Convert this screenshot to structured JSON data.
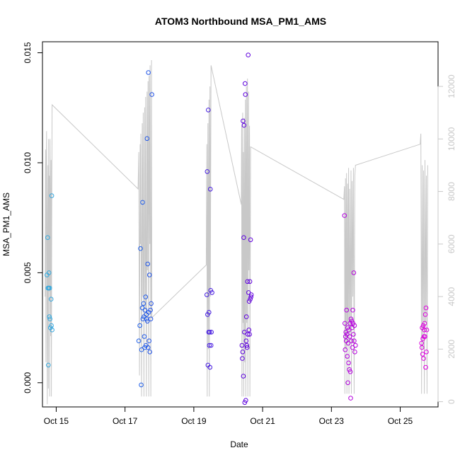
{
  "chart_data": {
    "type": "scatter",
    "title": "ATOM3 Northbound MSA_PM1_AMS",
    "xlabel": "Date",
    "ylabel": "MSA_PM1_AMS",
    "xlim": [
      14.6,
      26.1
    ],
    "ylim": [
      -0.0011,
      0.0155
    ],
    "y2lim": [
      -200,
      13700
    ],
    "x_ticks": [
      {
        "value": 15,
        "label": "Oct 15"
      },
      {
        "value": 17,
        "label": "Oct 17"
      },
      {
        "value": 19,
        "label": "Oct 19"
      },
      {
        "value": 21,
        "label": "Oct 21"
      },
      {
        "value": 23,
        "label": "Oct 23"
      },
      {
        "value": 25,
        "label": "Oct 25"
      }
    ],
    "y_ticks": [
      {
        "value": 0.0,
        "label": "0.000"
      },
      {
        "value": 0.005,
        "label": "0.005"
      },
      {
        "value": 0.01,
        "label": "0.010"
      },
      {
        "value": 0.015,
        "label": "0.015"
      }
    ],
    "y2_ticks": [
      {
        "value": 0,
        "label": "0"
      },
      {
        "value": 2000,
        "label": "2000"
      },
      {
        "value": 4000,
        "label": "4000"
      },
      {
        "value": 6000,
        "label": "6000"
      },
      {
        "value": 8000,
        "label": "8000"
      },
      {
        "value": 10000,
        "label": "10000"
      },
      {
        "value": 12000,
        "label": "12000"
      }
    ],
    "points": [
      {
        "x": 14.73,
        "y": 0.0049
      },
      {
        "x": 14.75,
        "y": 0.0066
      },
      {
        "x": 14.76,
        "y": 0.0043
      },
      {
        "x": 14.77,
        "y": 0.0008
      },
      {
        "x": 14.78,
        "y": 0.0043
      },
      {
        "x": 14.79,
        "y": 0.005
      },
      {
        "x": 14.8,
        "y": 0.003
      },
      {
        "x": 14.81,
        "y": 0.0043
      },
      {
        "x": 14.82,
        "y": 0.0029
      },
      {
        "x": 14.83,
        "y": 0.0025
      },
      {
        "x": 14.85,
        "y": 0.0038
      },
      {
        "x": 14.86,
        "y": 0.0026
      },
      {
        "x": 14.87,
        "y": 0.0085
      },
      {
        "x": 14.88,
        "y": 0.0024
      },
      {
        "x": 17.4,
        "y": 0.0019
      },
      {
        "x": 17.43,
        "y": 0.0026
      },
      {
        "x": 17.45,
        "y": 0.0061
      },
      {
        "x": 17.47,
        "y": -0.0001
      },
      {
        "x": 17.48,
        "y": 0.0015
      },
      {
        "x": 17.5,
        "y": 0.0034
      },
      {
        "x": 17.51,
        "y": 0.0082
      },
      {
        "x": 17.52,
        "y": 0.0029
      },
      {
        "x": 17.54,
        "y": 0.0036
      },
      {
        "x": 17.55,
        "y": 0.003
      },
      {
        "x": 17.56,
        "y": 0.0021
      },
      {
        "x": 17.57,
        "y": 0.0016
      },
      {
        "x": 17.58,
        "y": 0.0033
      },
      {
        "x": 17.6,
        "y": 0.0039
      },
      {
        "x": 17.61,
        "y": 0.0017
      },
      {
        "x": 17.62,
        "y": 0.0031
      },
      {
        "x": 17.63,
        "y": 0.0029
      },
      {
        "x": 17.64,
        "y": 0.0111
      },
      {
        "x": 17.65,
        "y": 0.0028
      },
      {
        "x": 17.66,
        "y": 0.0054
      },
      {
        "x": 17.67,
        "y": 0.0016
      },
      {
        "x": 17.68,
        "y": 0.0141
      },
      {
        "x": 17.69,
        "y": 0.0032
      },
      {
        "x": 17.7,
        "y": 0.0019
      },
      {
        "x": 17.71,
        "y": 0.0049
      },
      {
        "x": 17.72,
        "y": 0.0014
      },
      {
        "x": 17.74,
        "y": 0.0033
      },
      {
        "x": 17.75,
        "y": 0.0029
      },
      {
        "x": 17.76,
        "y": 0.0036
      },
      {
        "x": 17.78,
        "y": 0.0131
      },
      {
        "x": 19.38,
        "y": 0.004
      },
      {
        "x": 19.39,
        "y": 0.0096
      },
      {
        "x": 19.4,
        "y": 0.0031
      },
      {
        "x": 19.41,
        "y": 0.0008
      },
      {
        "x": 19.42,
        "y": 0.0124
      },
      {
        "x": 19.43,
        "y": 0.0023
      },
      {
        "x": 19.44,
        "y": 0.0032
      },
      {
        "x": 19.45,
        "y": 0.0017
      },
      {
        "x": 19.46,
        "y": 0.0023
      },
      {
        "x": 19.47,
        "y": 0.0007
      },
      {
        "x": 19.48,
        "y": 0.0088
      },
      {
        "x": 19.49,
        "y": 0.0042
      },
      {
        "x": 19.5,
        "y": 0.0017
      },
      {
        "x": 19.51,
        "y": 0.0023
      },
      {
        "x": 19.53,
        "y": 0.0041
      },
      {
        "x": 20.4,
        "y": 0.0017
      },
      {
        "x": 20.41,
        "y": 0.0011
      },
      {
        "x": 20.42,
        "y": 0.0014
      },
      {
        "x": 20.43,
        "y": 0.0119
      },
      {
        "x": 20.44,
        "y": 0.0003
      },
      {
        "x": 20.45,
        "y": 0.0066
      },
      {
        "x": 20.46,
        "y": 0.0117
      },
      {
        "x": 20.47,
        "y": 0.0023
      },
      {
        "x": 20.48,
        "y": -0.0009
      },
      {
        "x": 20.49,
        "y": 0.0136
      },
      {
        "x": 20.5,
        "y": 0.0131
      },
      {
        "x": 20.51,
        "y": -0.0008
      },
      {
        "x": 20.52,
        "y": 0.0019
      },
      {
        "x": 20.53,
        "y": 0.003
      },
      {
        "x": 20.54,
        "y": 0.0017
      },
      {
        "x": 20.55,
        "y": 0.0016
      },
      {
        "x": 20.56,
        "y": 0.0046
      },
      {
        "x": 20.57,
        "y": 0.0022
      },
      {
        "x": 20.58,
        "y": 0.0149
      },
      {
        "x": 20.59,
        "y": 0.0041
      },
      {
        "x": 20.6,
        "y": 0.0024
      },
      {
        "x": 20.61,
        "y": 0.0037
      },
      {
        "x": 20.62,
        "y": 0.0022
      },
      {
        "x": 20.63,
        "y": 0.0046
      },
      {
        "x": 20.64,
        "y": 0.0038
      },
      {
        "x": 20.65,
        "y": 0.0065
      },
      {
        "x": 20.66,
        "y": 0.0039
      },
      {
        "x": 20.67,
        "y": 0.004
      },
      {
        "x": 23.38,
        "y": 0.0076
      },
      {
        "x": 23.39,
        "y": 0.0027
      },
      {
        "x": 23.4,
        "y": 0.0015
      },
      {
        "x": 23.41,
        "y": 0.0021
      },
      {
        "x": 23.42,
        "y": 0.0023
      },
      {
        "x": 23.43,
        "y": 0.0019
      },
      {
        "x": 23.44,
        "y": 0.0033
      },
      {
        "x": 23.45,
        "y": 0.0022
      },
      {
        "x": 23.46,
        "y": 0.0012
      },
      {
        "x": 23.47,
        "y": 0.0025
      },
      {
        "x": 23.48,
        "y": 0.0
      },
      {
        "x": 23.49,
        "y": 0.0018
      },
      {
        "x": 23.5,
        "y": 0.0009
      },
      {
        "x": 23.51,
        "y": 0.0024
      },
      {
        "x": 23.52,
        "y": 0.0006
      },
      {
        "x": 23.53,
        "y": 0.0021
      },
      {
        "x": 23.54,
        "y": 0.0027
      },
      {
        "x": 23.55,
        "y": 0.0005
      },
      {
        "x": 23.56,
        "y": -0.0007
      },
      {
        "x": 23.57,
        "y": 0.0029
      },
      {
        "x": 23.58,
        "y": 0.0019
      },
      {
        "x": 23.59,
        "y": 0.0028
      },
      {
        "x": 23.6,
        "y": 0.0025
      },
      {
        "x": 23.61,
        "y": 0.0016
      },
      {
        "x": 23.62,
        "y": 0.0033
      },
      {
        "x": 23.63,
        "y": 0.0027
      },
      {
        "x": 23.64,
        "y": 0.0022
      },
      {
        "x": 23.65,
        "y": 0.005
      },
      {
        "x": 23.66,
        "y": 0.0019
      },
      {
        "x": 23.67,
        "y": 0.0026
      },
      {
        "x": 23.68,
        "y": 0.0014
      },
      {
        "x": 23.7,
        "y": 0.0017
      },
      {
        "x": 25.62,
        "y": 0.0018
      },
      {
        "x": 25.63,
        "y": 0.0016
      },
      {
        "x": 25.64,
        "y": 0.0025
      },
      {
        "x": 25.65,
        "y": 0.0013
      },
      {
        "x": 25.66,
        "y": 0.002
      },
      {
        "x": 25.67,
        "y": 0.0026
      },
      {
        "x": 25.68,
        "y": 0.0011
      },
      {
        "x": 25.69,
        "y": 0.0021
      },
      {
        "x": 25.7,
        "y": 0.0024
      },
      {
        "x": 25.71,
        "y": 0.0027
      },
      {
        "x": 25.72,
        "y": 0.0021
      },
      {
        "x": 25.73,
        "y": 0.0031
      },
      {
        "x": 25.74,
        "y": 0.0007
      },
      {
        "x": 25.75,
        "y": 0.0034
      },
      {
        "x": 25.76,
        "y": 0.0014
      },
      {
        "x": 25.77,
        "y": 0.0024
      }
    ],
    "series2_line": [
      {
        "x": 14.68,
        "y2": 4000
      },
      {
        "x": 14.69,
        "y2": 9600
      },
      {
        "x": 14.7,
        "y2": 1500
      },
      {
        "x": 14.71,
        "y2": 8400
      },
      {
        "x": 14.72,
        "y2": 10300
      },
      {
        "x": 14.73,
        "y2": 5800
      },
      {
        "x": 14.74,
        "y2": -100
      },
      {
        "x": 14.75,
        "y2": 7200
      },
      {
        "x": 14.76,
        "y2": 9000
      },
      {
        "x": 14.77,
        "y2": 500
      },
      {
        "x": 14.78,
        "y2": 10000
      },
      {
        "x": 14.79,
        "y2": 4200
      },
      {
        "x": 14.8,
        "y2": 8600
      },
      {
        "x": 14.81,
        "y2": 200
      },
      {
        "x": 14.82,
        "y2": 10000
      },
      {
        "x": 14.83,
        "y2": 7400
      },
      {
        "x": 14.84,
        "y2": 2500
      },
      {
        "x": 14.85,
        "y2": 9200
      },
      {
        "x": 14.86,
        "y2": 200
      },
      {
        "x": 14.87,
        "y2": 6500
      },
      {
        "x": 14.88,
        "y2": 11300
      },
      {
        "x": 17.38,
        "y2": 8100
      },
      {
        "x": 17.4,
        "y2": 9500
      },
      {
        "x": 17.42,
        "y2": 1000
      },
      {
        "x": 17.44,
        "y2": 9800
      },
      {
        "x": 17.45,
        "y2": 6000
      },
      {
        "x": 17.46,
        "y2": 10200
      },
      {
        "x": 17.48,
        "y2": 200
      },
      {
        "x": 17.5,
        "y2": 10600
      },
      {
        "x": 17.52,
        "y2": 4000
      },
      {
        "x": 17.53,
        "y2": 11000
      },
      {
        "x": 17.55,
        "y2": 200
      },
      {
        "x": 17.57,
        "y2": 11200
      },
      {
        "x": 17.59,
        "y2": 3500
      },
      {
        "x": 17.6,
        "y2": 11600
      },
      {
        "x": 17.62,
        "y2": 200
      },
      {
        "x": 17.64,
        "y2": 11800
      },
      {
        "x": 17.65,
        "y2": 5000
      },
      {
        "x": 17.67,
        "y2": 12200
      },
      {
        "x": 17.69,
        "y2": 200
      },
      {
        "x": 17.7,
        "y2": 12400
      },
      {
        "x": 17.72,
        "y2": 6000
      },
      {
        "x": 17.73,
        "y2": 12800
      },
      {
        "x": 17.75,
        "y2": 200
      },
      {
        "x": 17.77,
        "y2": 13000
      },
      {
        "x": 17.78,
        "y2": 3200
      },
      {
        "x": 19.36,
        "y2": 5200
      },
      {
        "x": 19.38,
        "y2": 9800
      },
      {
        "x": 19.39,
        "y2": 200
      },
      {
        "x": 19.41,
        "y2": 10600
      },
      {
        "x": 19.42,
        "y2": 2000
      },
      {
        "x": 19.44,
        "y2": 11500
      },
      {
        "x": 19.45,
        "y2": 200
      },
      {
        "x": 19.47,
        "y2": 12000
      },
      {
        "x": 19.48,
        "y2": 4000
      },
      {
        "x": 19.5,
        "y2": 12800
      },
      {
        "x": 20.38,
        "y2": 7500
      },
      {
        "x": 20.39,
        "y2": 10500
      },
      {
        "x": 20.4,
        "y2": 200
      },
      {
        "x": 20.42,
        "y2": 11000
      },
      {
        "x": 20.43,
        "y2": 3000
      },
      {
        "x": 20.44,
        "y2": 9500
      },
      {
        "x": 20.45,
        "y2": 200
      },
      {
        "x": 20.47,
        "y2": 10800
      },
      {
        "x": 20.48,
        "y2": 1500
      },
      {
        "x": 20.5,
        "y2": 11500
      },
      {
        "x": 20.51,
        "y2": 200
      },
      {
        "x": 20.53,
        "y2": 12000
      },
      {
        "x": 20.54,
        "y2": 3000
      },
      {
        "x": 20.56,
        "y2": 12300
      },
      {
        "x": 20.57,
        "y2": 200
      },
      {
        "x": 20.59,
        "y2": 11800
      },
      {
        "x": 20.6,
        "y2": 5000
      },
      {
        "x": 20.62,
        "y2": 10500
      },
      {
        "x": 20.63,
        "y2": 200
      },
      {
        "x": 20.65,
        "y2": 9700
      },
      {
        "x": 23.36,
        "y2": 7700
      },
      {
        "x": 23.38,
        "y2": 8200
      },
      {
        "x": 23.39,
        "y2": 300
      },
      {
        "x": 23.41,
        "y2": 8500
      },
      {
        "x": 23.42,
        "y2": 2000
      },
      {
        "x": 23.44,
        "y2": 8700
      },
      {
        "x": 23.45,
        "y2": 300
      },
      {
        "x": 23.47,
        "y2": 8300
      },
      {
        "x": 23.48,
        "y2": 3000
      },
      {
        "x": 23.5,
        "y2": 8900
      },
      {
        "x": 23.51,
        "y2": 300
      },
      {
        "x": 23.53,
        "y2": 8100
      },
      {
        "x": 23.55,
        "y2": 2500
      },
      {
        "x": 23.57,
        "y2": 8800
      },
      {
        "x": 23.58,
        "y2": 300
      },
      {
        "x": 23.6,
        "y2": 8400
      },
      {
        "x": 23.62,
        "y2": 4000
      },
      {
        "x": 23.64,
        "y2": 8900
      },
      {
        "x": 23.66,
        "y2": 300
      },
      {
        "x": 23.68,
        "y2": 8600
      },
      {
        "x": 23.7,
        "y2": 9000
      },
      {
        "x": 25.58,
        "y2": 9800
      },
      {
        "x": 25.6,
        "y2": 10200
      },
      {
        "x": 25.62,
        "y2": 300
      },
      {
        "x": 25.64,
        "y2": 9000
      },
      {
        "x": 25.66,
        "y2": 2000
      },
      {
        "x": 25.68,
        "y2": 8800
      },
      {
        "x": 25.7,
        "y2": 300
      },
      {
        "x": 25.72,
        "y2": 9200
      },
      {
        "x": 25.74,
        "y2": 3000
      },
      {
        "x": 25.76,
        "y2": 8600
      },
      {
        "x": 25.78,
        "y2": 300
      },
      {
        "x": 25.8,
        "y2": 9000
      }
    ],
    "color_gradient": [
      "#33aadd",
      "#1f5ee8",
      "#5500dd",
      "#aa00dd",
      "#dd00dd"
    ],
    "line_color": "#c8c8c8"
  }
}
